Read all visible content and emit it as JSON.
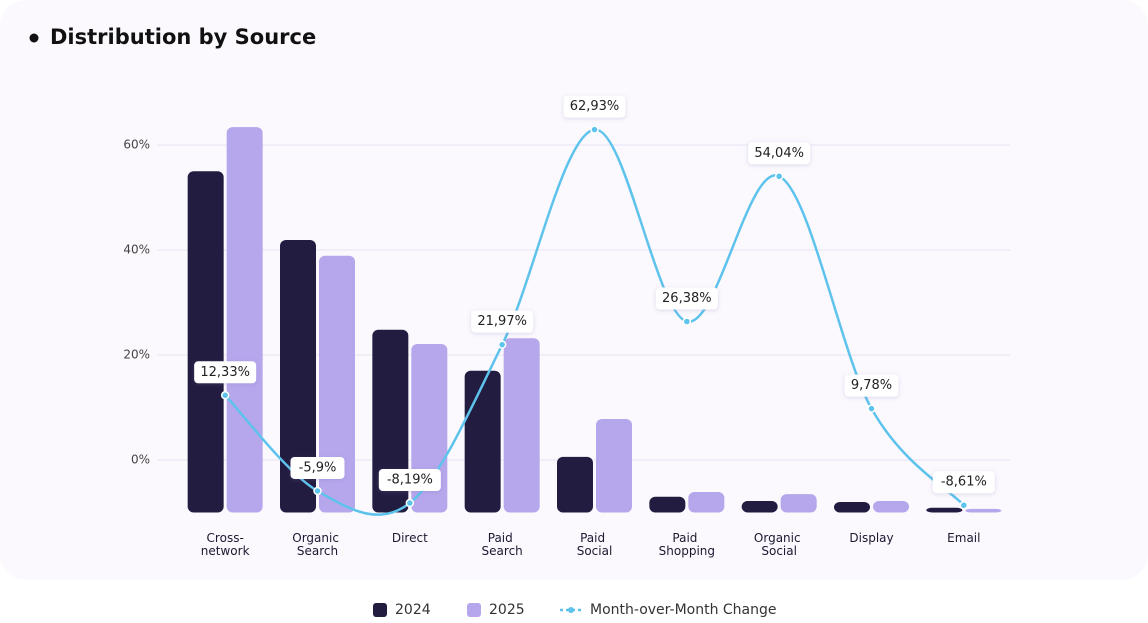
{
  "chart_data": {
    "type": "bar-line",
    "title": "Distribution by Source",
    "categories": [
      "Cross-network",
      "Organic Search",
      "Direct",
      "Paid Search",
      "Paid Social",
      "Paid Shopping",
      "Organic Social",
      "Display",
      "Email"
    ],
    "series": [
      {
        "name": "2024",
        "type": "bar",
        "color": "#221c41",
        "values": [
          55,
          41.9,
          24.8,
          17,
          0.6,
          -7,
          -7.8,
          -8,
          -9.1
        ]
      },
      {
        "name": "2025",
        "type": "bar",
        "color": "#b6a6ec",
        "values": [
          63.4,
          38.9,
          22.1,
          23.2,
          7.8,
          -6.1,
          -6.5,
          -7.8,
          -9.3
        ]
      },
      {
        "name": "Month-over-Month Change",
        "type": "line",
        "color": "#5ec3ec",
        "values": [
          12.33,
          -5.9,
          -8.19,
          21.97,
          62.93,
          26.38,
          54.04,
          9.78,
          -8.61
        ],
        "value_labels": [
          "12,33%",
          "-5,9%",
          "-8,19%",
          "21,97%",
          "62,93%",
          "26,38%",
          "54,04%",
          "9,78%",
          "-8,61%"
        ]
      }
    ],
    "ylim": [
      -10,
      70
    ],
    "yticks": [
      {
        "value": 0,
        "label": "0%"
      },
      {
        "value": 20,
        "label": "20%"
      },
      {
        "value": 40,
        "label": "40%"
      },
      {
        "value": 60,
        "label": "60%"
      }
    ],
    "grid": true,
    "legend": "bottom"
  }
}
